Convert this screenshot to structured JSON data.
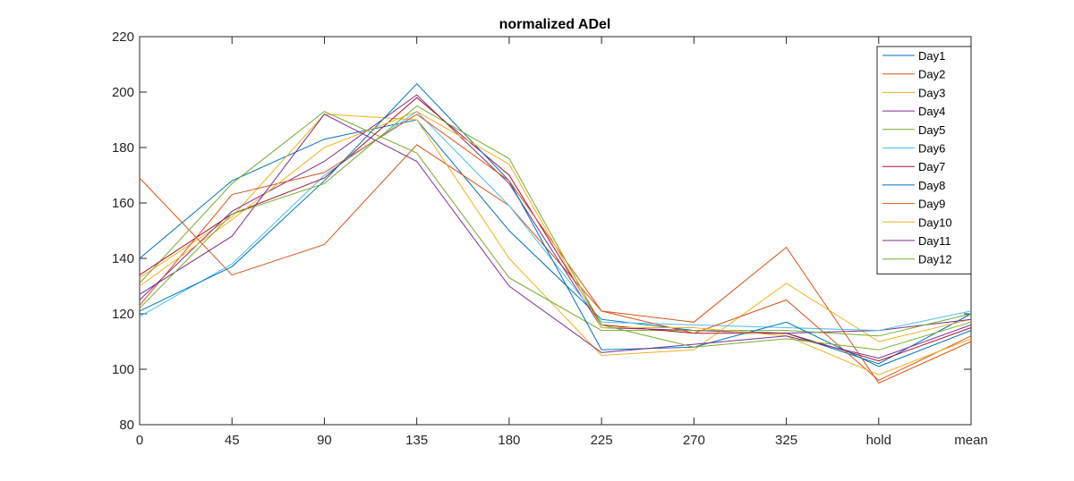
{
  "chart_data": {
    "type": "line",
    "title": "normalized ADel",
    "xlabel": "",
    "ylabel": "",
    "categories": [
      "0",
      "45",
      "90",
      "135",
      "180",
      "225",
      "270",
      "325",
      "hold",
      "mean"
    ],
    "ylim": [
      80,
      220
    ],
    "yticks": [
      80,
      100,
      120,
      140,
      160,
      180,
      200,
      220
    ],
    "grid": false,
    "legend_position": "top-right",
    "series": [
      {
        "name": "Day1",
        "color": "#0072BD",
        "values": [
          140,
          168,
          183,
          190,
          150,
          118,
          114,
          113,
          102,
          120
        ]
      },
      {
        "name": "Day2",
        "color": "#D95319",
        "values": [
          169,
          134,
          145,
          181,
          159,
          121,
          117,
          144,
          95,
          110
        ]
      },
      {
        "name": "Day3",
        "color": "#EDB120",
        "values": [
          133,
          155,
          192,
          190,
          140,
          105,
          107,
          131,
          110,
          118
        ]
      },
      {
        "name": "Day4",
        "color": "#7E2F8E",
        "values": [
          125,
          157,
          175,
          199,
          167,
          115,
          114,
          113,
          114,
          118
        ]
      },
      {
        "name": "Day5",
        "color": "#77AC30",
        "values": [
          131,
          167,
          193,
          178,
          133,
          114,
          114,
          114,
          112,
          120
        ]
      },
      {
        "name": "Day6",
        "color": "#4DBEEE",
        "values": [
          119,
          138,
          170,
          193,
          159,
          117,
          116,
          115,
          114,
          121
        ]
      },
      {
        "name": "Day7",
        "color": "#A2142F",
        "values": [
          134,
          156,
          169,
          198,
          170,
          116,
          113,
          113,
          103,
          115
        ]
      },
      {
        "name": "Day8",
        "color": "#0072BD",
        "values": [
          121,
          137,
          168,
          203,
          168,
          107,
          108,
          117,
          101,
          114
        ]
      },
      {
        "name": "Day9",
        "color": "#D95319",
        "values": [
          123,
          163,
          171,
          192,
          168,
          121,
          113,
          125,
          96,
          112
        ]
      },
      {
        "name": "Day10",
        "color": "#EDB120",
        "values": [
          130,
          154,
          180,
          193,
          174,
          115,
          115,
          112,
          98,
          111
        ]
      },
      {
        "name": "Day11",
        "color": "#7E2F8E",
        "values": [
          127,
          148,
          192,
          175,
          130,
          106,
          109,
          112,
          104,
          116
        ]
      },
      {
        "name": "Day12",
        "color": "#77AC30",
        "values": [
          122,
          156,
          167,
          195,
          176,
          116,
          108,
          111,
          107,
          117
        ]
      }
    ]
  }
}
